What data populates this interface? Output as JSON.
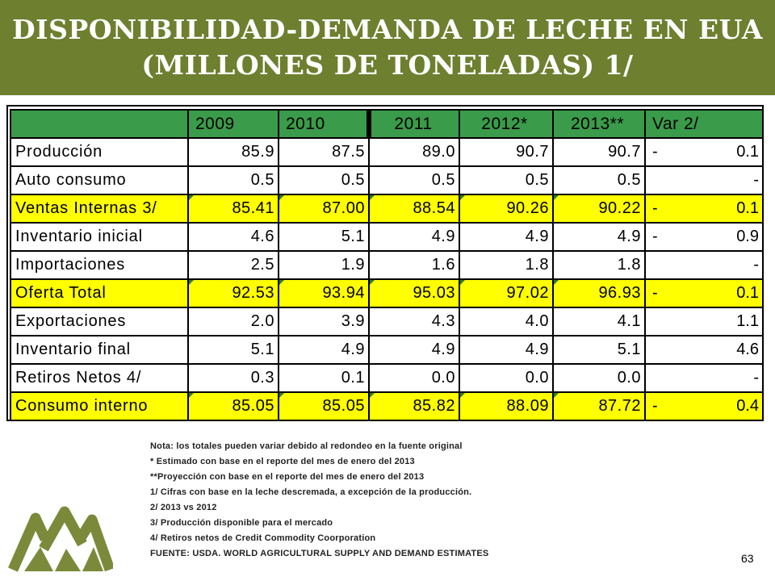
{
  "title": {
    "line1": "DISPONIBILIDAD-DEMANDA DE LECHE EN EUA",
    "line2": "(MILLONES DE TONELADAS) 1/"
  },
  "table": {
    "headers": [
      "",
      "2009",
      "2010",
      "2011",
      "2012*",
      "2013**",
      "Var 2/"
    ],
    "rows": [
      {
        "label": "Producción",
        "values": [
          "85.9",
          "87.5",
          "89.0",
          "90.7",
          "90.7"
        ],
        "var_sign": "-",
        "var_value": "0.1",
        "highlight": false
      },
      {
        "label": "Auto consumo",
        "values": [
          "0.5",
          "0.5",
          "0.5",
          "0.5",
          "0.5"
        ],
        "var_sign": "",
        "var_value": "-",
        "highlight": false
      },
      {
        "label": "Ventas Internas 3/",
        "values": [
          "85.41",
          "87.00",
          "88.54",
          "90.26",
          "90.22"
        ],
        "var_sign": "-",
        "var_value": "0.1",
        "highlight": true
      },
      {
        "label": "Inventario inicial",
        "values": [
          "4.6",
          "5.1",
          "4.9",
          "4.9",
          "4.9"
        ],
        "var_sign": "-",
        "var_value": "0.9",
        "highlight": false
      },
      {
        "label": "Importaciones",
        "values": [
          "2.5",
          "1.9",
          "1.6",
          "1.8",
          "1.8"
        ],
        "var_sign": "",
        "var_value": "-",
        "highlight": false
      },
      {
        "label": "Oferta Total",
        "values": [
          "92.53",
          "93.94",
          "95.03",
          "97.02",
          "96.93"
        ],
        "var_sign": "-",
        "var_value": "0.1",
        "highlight": true
      },
      {
        "label": "Exportaciones",
        "values": [
          "2.0",
          "3.9",
          "4.3",
          "4.0",
          "4.1"
        ],
        "var_sign": "",
        "var_value": "1.1",
        "highlight": false
      },
      {
        "label": "Inventario final",
        "values": [
          "5.1",
          "4.9",
          "4.9",
          "4.9",
          "5.1"
        ],
        "var_sign": "",
        "var_value": "4.6",
        "highlight": false
      },
      {
        "label": "Retiros Netos 4/",
        "values": [
          "0.3",
          "0.1",
          "0.0",
          "0.0",
          "0.0"
        ],
        "var_sign": "",
        "var_value": "-",
        "highlight": false
      },
      {
        "label": "Consumo interno",
        "values": [
          "85.05",
          "85.05",
          "85.82",
          "88.09",
          "87.72"
        ],
        "var_sign": "-",
        "var_value": "0.4",
        "highlight": true
      }
    ]
  },
  "notes": [
    "Nota: los totales pueden variar debido al redondeo en la fuente original",
    "* Estimado con base en el reporte del mes de enero del 2013",
    "**Proyección con base en el reporte del mes de enero del 2013",
    "1/ Cifras con base en la leche descremada, a excepción de la producción.",
    "2/ 2013 vs 2012",
    "3/ Producción disponible para el mercado",
    "4/ Retiros netos de Credit Commodity Coorporation",
    "FUENTE: USDA. WORLD AGRICULTURAL  SUPPLY AND DEMAND ESTIMATES"
  ],
  "page_number": "63",
  "colors": {
    "title_bar": "#6e7f2f",
    "header_green": "#3a9b4a",
    "highlight_yellow": "#ffff00",
    "logo_green": "#7a8a3a"
  },
  "logo_icon": "mountains-logo-icon"
}
